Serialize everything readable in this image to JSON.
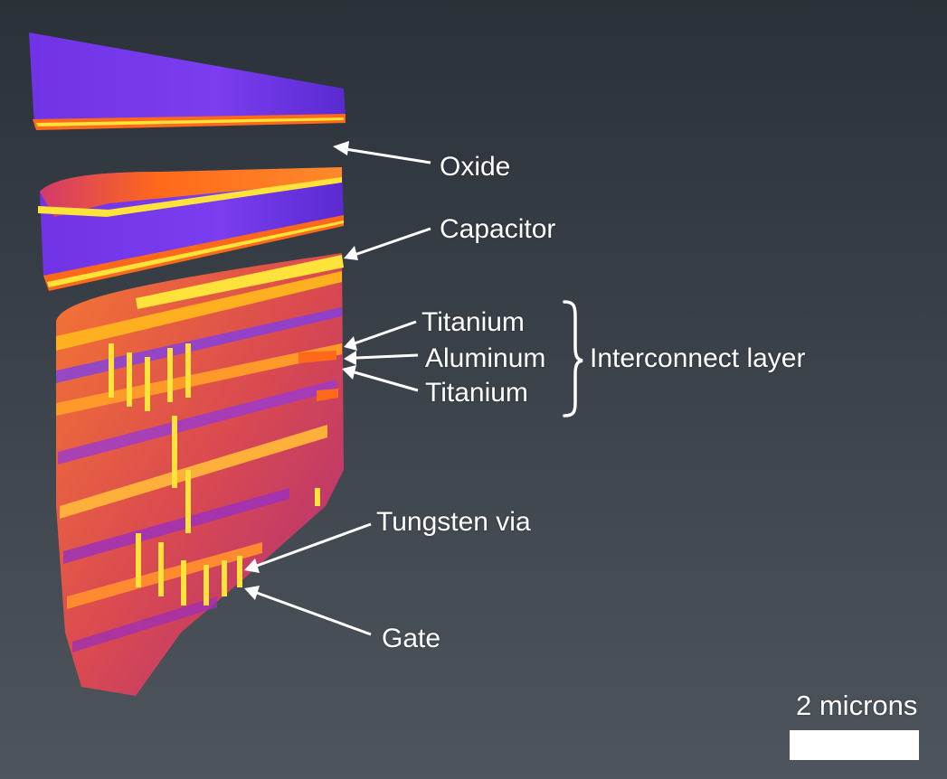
{
  "labels": {
    "oxide": "Oxide",
    "capacitor": "Capacitor",
    "titanium_top": "Titanium",
    "aluminum": "Aluminum",
    "titanium_bottom": "Titanium",
    "interconnect": "Interconnect layer",
    "tungsten_via": "Tungsten via",
    "gate": "Gate"
  },
  "scale_bar": {
    "label": "2 microns"
  },
  "colors": {
    "oxide_purple": "#7a3df0",
    "hot_orange": "#ff6a1a",
    "hot_yellow": "#ffe23a",
    "background_top": "#2b3138",
    "background_bottom": "#4f555d",
    "annotation": "#ffffff"
  }
}
